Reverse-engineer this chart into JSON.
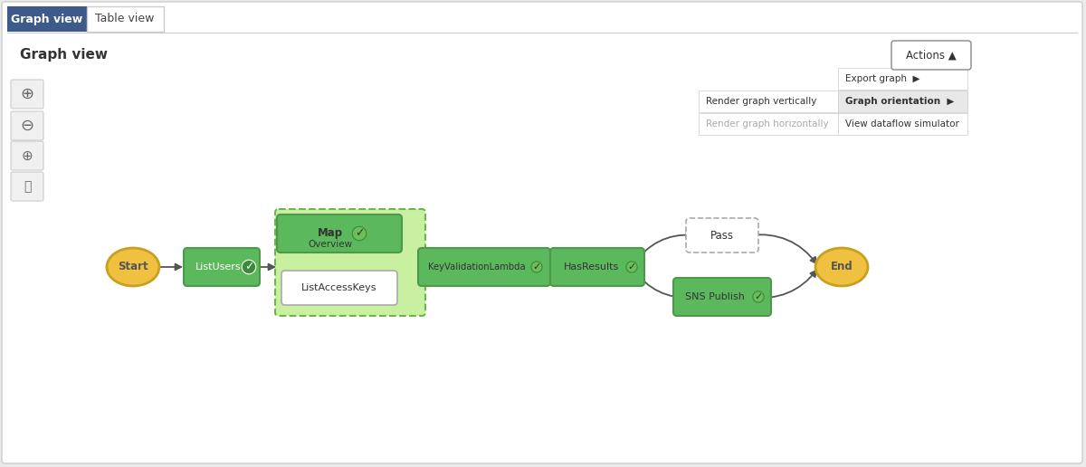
{
  "bg_color": "#ebebeb",
  "main_bg": "#ffffff",
  "panel_bg": "#f5f5f5",
  "tab_active_color": "#3d5a8a",
  "tab_active_text": "#ffffff",
  "tab_inactive_text": "#444444",
  "tab_border": "#cccccc",
  "tab_active_label": "Graph view",
  "tab_inactive_label": "Table view",
  "section_title": "Graph view",
  "actions_label": "Actions ▲",
  "menu_export": "Export graph",
  "menu_orientation": "Graph orientation",
  "menu_simulator": "View dataflow simulator",
  "submenu_vertical": "Render graph vertically",
  "submenu_horizontal": "Render graph horizontally",
  "node_green": "#5cb85c",
  "node_green_border": "#4a9a4a",
  "node_green_dark": "#4a9a4a",
  "node_yellow": "#f0c040",
  "node_yellow_border": "#c8a020",
  "node_white": "#ffffff",
  "node_white_border": "#aaaaaa",
  "map_container_fill": "#c8f0a0",
  "map_container_border": "#6ab84a",
  "arrow_color": "#555555",
  "toolbar_icon_bg": "#f0f0f0",
  "toolbar_icon_border": "#cccccc"
}
